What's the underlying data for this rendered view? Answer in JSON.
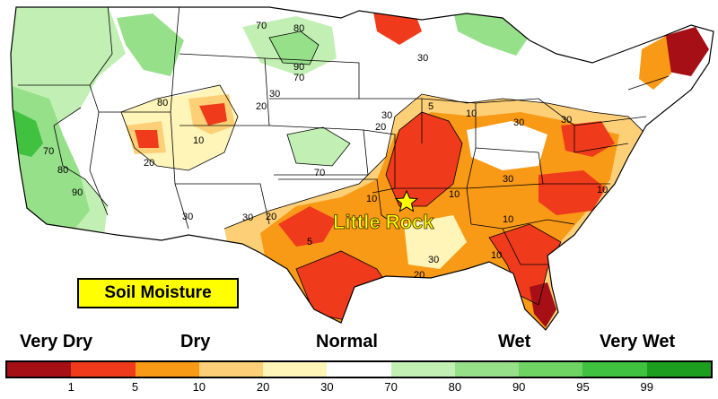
{
  "title": "Soil Moisture",
  "city": {
    "name": "Little Rock"
  },
  "categories": [
    {
      "label": "Very Dry"
    },
    {
      "label": "Dry"
    },
    {
      "label": "Normal"
    },
    {
      "label": "Wet"
    },
    {
      "label": "Very Wet"
    }
  ],
  "legend": {
    "colors": [
      "#a50f15",
      "#ef3b1c",
      "#f99a17",
      "#fdd078",
      "#fff5b8",
      "#ffffff",
      "#c2f0b4",
      "#97e08a",
      "#6ed363",
      "#40c140",
      "#1e9e1e"
    ],
    "ticks": [
      "1",
      "5",
      "10",
      "20",
      "30",
      "70",
      "80",
      "90",
      "95",
      "99"
    ]
  },
  "contour_labels": [
    "70",
    "80",
    "90",
    "70",
    "30",
    "80",
    "20",
    "10",
    "20",
    "30",
    "30",
    "20",
    "10",
    "5",
    "10",
    "30",
    "10",
    "30",
    "70",
    "70",
    "80",
    "90",
    "30",
    "30",
    "10",
    "5",
    "10",
    "30",
    "10",
    "20",
    "30",
    "20"
  ],
  "colors": {
    "very_dry": "#a50f15",
    "dry": "#ef3b1c",
    "moderately_dry": "#f99a17",
    "slightly_dry": "#fdd078",
    "near_normal_dry": "#fff5b8",
    "normal": "#ffffff",
    "slightly_wet": "#c2f0b4",
    "wet": "#97e08a",
    "very_wet": "#40c140"
  }
}
